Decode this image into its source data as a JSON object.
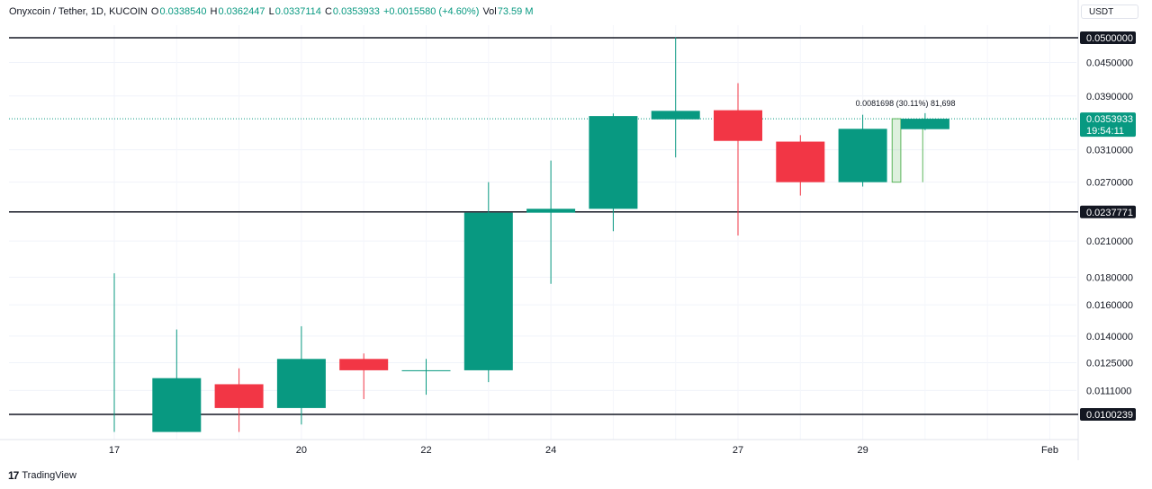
{
  "header": {
    "symbol": "Onyxcoin / Tether, 1D, KUCOIN",
    "o_label": "O",
    "o_value": "0.0338540",
    "h_label": "H",
    "h_value": "0.0362447",
    "l_label": "L",
    "l_value": "0.0337114",
    "c_label": "C",
    "c_value": "0.0353933",
    "change": "+0.0015580 (+4.60%)",
    "vol_label": "Vol",
    "vol_value": "73.59 M"
  },
  "currency_button": "USDT",
  "brand": {
    "mark": "17",
    "name": "TradingView"
  },
  "colors": {
    "up": "#089981",
    "down": "#f23645",
    "measure": "#5ab55a"
  },
  "chart_data": {
    "type": "candlestick",
    "x_ticks": [
      {
        "day": 17,
        "label": "17"
      },
      {
        "day": 20,
        "label": "20"
      },
      {
        "day": 22,
        "label": "22"
      },
      {
        "day": 24,
        "label": "24"
      },
      {
        "day": 27,
        "label": "27"
      },
      {
        "day": 29,
        "label": "29"
      },
      {
        "day": 32,
        "label": "Feb"
      }
    ],
    "y_ticks": [
      0.0111,
      0.0125,
      0.014,
      0.016,
      0.018,
      0.021,
      0.027,
      0.031,
      0.039,
      0.045
    ],
    "y_tick_labels": [
      "0.0111000",
      "0.0125000",
      "0.0140000",
      "0.0160000",
      "0.0180000",
      "0.0210000",
      "0.0270000",
      "0.0310000",
      "0.0390000",
      "0.0450000"
    ],
    "ylim": [
      0.0093,
      0.062
    ],
    "y_scale": "log",
    "candles": [
      {
        "day": 17,
        "o": 0.0093,
        "h": 0.0183,
        "l": 0.0093,
        "c": 0.0093
      },
      {
        "day": 18,
        "o": 0.0093,
        "h": 0.0144,
        "l": 0.0093,
        "c": 0.0117
      },
      {
        "day": 19,
        "o": 0.0114,
        "h": 0.0122,
        "l": 0.0093,
        "c": 0.0103
      },
      {
        "day": 20,
        "o": 0.0103,
        "h": 0.0146,
        "l": 0.0096,
        "c": 0.0127
      },
      {
        "day": 21,
        "o": 0.0127,
        "h": 0.013,
        "l": 0.0107,
        "c": 0.0121
      },
      {
        "day": 22,
        "o": 0.0121,
        "h": 0.0127,
        "l": 0.0109,
        "c": 0.0121
      },
      {
        "day": 23,
        "o": 0.0121,
        "h": 0.027,
        "l": 0.0115,
        "c": 0.0237
      },
      {
        "day": 24,
        "o": 0.0237,
        "h": 0.0296,
        "l": 0.0175,
        "c": 0.0241
      },
      {
        "day": 25,
        "o": 0.0241,
        "h": 0.0362,
        "l": 0.0219,
        "c": 0.0358
      },
      {
        "day": 26,
        "o": 0.0353,
        "h": 0.0501,
        "l": 0.03,
        "c": 0.0366
      },
      {
        "day": 27,
        "o": 0.0367,
        "h": 0.0412,
        "l": 0.0215,
        "c": 0.0322
      },
      {
        "day": 28,
        "o": 0.0321,
        "h": 0.033,
        "l": 0.0255,
        "c": 0.027
      },
      {
        "day": 29,
        "o": 0.027,
        "h": 0.036,
        "l": 0.0265,
        "c": 0.0339
      },
      {
        "day": 30,
        "o": 0.033854,
        "h": 0.0362447,
        "l": 0.0337114,
        "c": 0.0353933
      }
    ],
    "horizontal_lines": [
      {
        "value": 0.05,
        "label": "0.0500000"
      },
      {
        "value": 0.0237771,
        "label": "0.0237771"
      },
      {
        "value": 0.0100239,
        "label": "0.0100239"
      }
    ],
    "last_price": {
      "value": 0.0353933,
      "label": "0.0353933",
      "countdown": "19:54:11"
    },
    "measure": {
      "from_day": 29.5,
      "to_day": 30,
      "from_value": 0.027,
      "to_value": 0.0353933,
      "label": "0.0081698 (30.11%) 81,698"
    }
  }
}
